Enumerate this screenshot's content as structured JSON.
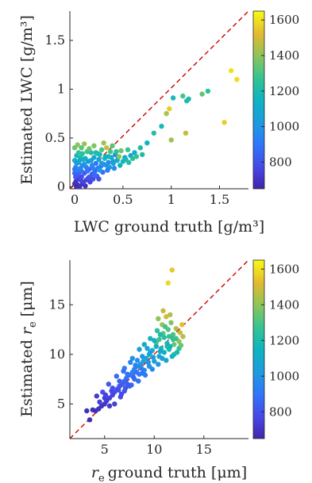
{
  "chart_data": [
    {
      "type": "scatter",
      "xlabel": "LWC ground truth [g/m³]",
      "ylabel": "Estimated LWC [g/m³]",
      "xlim": [
        -0.05,
        1.8
      ],
      "ylim": [
        -0.02,
        1.8
      ],
      "xticks": [
        "0",
        "0.5",
        "1",
        "1.5"
      ],
      "yticks": [
        "0",
        "0.5",
        "1",
        "1.5"
      ],
      "xtick_values": [
        0,
        0.5,
        1,
        1.5
      ],
      "ytick_values": [
        0,
        0.5,
        1,
        1.5
      ],
      "reference_line": "y = x (red dashed)",
      "colorbar": {
        "range": [
          650,
          1650
        ],
        "ticks": [
          "800",
          "1000",
          "1200",
          "1400",
          "1600"
        ],
        "tick_values": [
          800,
          1000,
          1200,
          1400,
          1600
        ],
        "colormap": "parula"
      },
      "points": [
        [
          1.62,
          1.19,
          1600
        ],
        [
          1.68,
          1.1,
          1590
        ],
        [
          1.55,
          0.66,
          1560
        ],
        [
          1.32,
          0.95,
          1330
        ],
        [
          1.38,
          0.98,
          1250
        ],
        [
          1.12,
          0.93,
          1300
        ],
        [
          1.18,
          0.9,
          1200
        ],
        [
          1.16,
          0.88,
          1210
        ],
        [
          1.02,
          0.91,
          1180
        ],
        [
          0.98,
          0.8,
          1560
        ],
        [
          0.95,
          0.75,
          1450
        ],
        [
          1.15,
          0.55,
          1480
        ],
        [
          1.0,
          0.48,
          1420
        ],
        [
          0.9,
          0.62,
          1180
        ],
        [
          0.82,
          0.55,
          1230
        ],
        [
          0.75,
          0.45,
          1150
        ],
        [
          0.68,
          0.4,
          1200
        ],
        [
          0.62,
          0.35,
          1120
        ],
        [
          0.58,
          0.32,
          1080
        ],
        [
          0.52,
          0.3,
          1050
        ],
        [
          0.48,
          0.37,
          1350
        ],
        [
          0.55,
          0.38,
          1280
        ],
        [
          0.45,
          0.3,
          1150
        ],
        [
          0.42,
          0.33,
          980
        ],
        [
          0.4,
          0.26,
          1020
        ],
        [
          0.38,
          0.3,
          1100
        ],
        [
          0.35,
          0.25,
          950
        ],
        [
          0.33,
          0.4,
          1480
        ],
        [
          0.3,
          0.45,
          1420
        ],
        [
          0.28,
          0.38,
          1300
        ],
        [
          0.26,
          0.33,
          1180
        ],
        [
          0.25,
          0.28,
          1050
        ],
        [
          0.22,
          0.24,
          900
        ],
        [
          0.2,
          0.3,
          1080
        ],
        [
          0.18,
          0.22,
          960
        ],
        [
          0.17,
          0.35,
          1220
        ],
        [
          0.15,
          0.18,
          850
        ],
        [
          0.14,
          0.26,
          1000
        ],
        [
          0.12,
          0.2,
          920
        ],
        [
          0.1,
          0.14,
          820
        ],
        [
          0.09,
          0.28,
          1150
        ],
        [
          0.08,
          0.22,
          980
        ],
        [
          0.07,
          0.16,
          880
        ],
        [
          0.06,
          0.3,
          1200
        ],
        [
          0.05,
          0.11,
          780
        ],
        [
          0.04,
          0.25,
          1050
        ],
        [
          0.03,
          0.18,
          920
        ],
        [
          0.02,
          0.08,
          720
        ],
        [
          0.02,
          0.32,
          1180
        ],
        [
          0.01,
          0.2,
          980
        ],
        [
          0.0,
          0.4,
          1350
        ],
        [
          0.0,
          0.27,
          1100
        ],
        [
          0.0,
          0.14,
          860
        ],
        [
          0.01,
          0.05,
          700
        ],
        [
          0.03,
          0.02,
          680
        ],
        [
          0.05,
          0.0,
          690
        ],
        [
          0.08,
          0.03,
          710
        ],
        [
          0.12,
          0.07,
          760
        ],
        [
          0.15,
          0.1,
          800
        ],
        [
          0.18,
          0.13,
          830
        ],
        [
          0.21,
          0.16,
          870
        ],
        [
          0.24,
          0.19,
          900
        ],
        [
          0.27,
          0.21,
          930
        ],
        [
          0.3,
          0.23,
          960
        ],
        [
          0.33,
          0.22,
          990
        ],
        [
          0.36,
          0.2,
          1020
        ],
        [
          0.4,
          0.24,
          1060
        ],
        [
          0.44,
          0.27,
          1100
        ],
        [
          0.47,
          0.22,
          1130
        ],
        [
          0.5,
          0.26,
          1160
        ],
        [
          0.53,
          0.28,
          1190
        ],
        [
          0.56,
          0.25,
          1220
        ],
        [
          0.6,
          0.29,
          1240
        ],
        [
          0.64,
          0.31,
          1260
        ],
        [
          0.7,
          0.33,
          1200
        ],
        [
          0.2,
          0.42,
          1380
        ],
        [
          0.13,
          0.36,
          1280
        ],
        [
          0.1,
          0.44,
          1420
        ],
        [
          0.07,
          0.4,
          1330
        ],
        [
          0.04,
          0.35,
          1260
        ],
        [
          0.16,
          0.05,
          750
        ],
        [
          0.11,
          0.01,
          700
        ],
        [
          0.19,
          0.08,
          780
        ],
        [
          0.23,
          0.11,
          820
        ],
        [
          0.29,
          0.15,
          880
        ],
        [
          0.34,
          0.17,
          920
        ],
        [
          0.41,
          0.19,
          970
        ],
        [
          0.46,
          0.31,
          1400
        ],
        [
          0.37,
          0.36,
          1300
        ],
        [
          0.31,
          0.29,
          1200
        ],
        [
          0.26,
          0.17,
          1000
        ],
        [
          0.21,
          0.12,
          870
        ],
        [
          0.14,
          0.09,
          800
        ],
        [
          0.09,
          0.05,
          740
        ],
        [
          0.06,
          0.07,
          760
        ],
        [
          0.0,
          0.18,
          900
        ],
        [
          0.02,
          0.24,
          1010
        ],
        [
          0.04,
          0.13,
          850
        ],
        [
          0.06,
          0.19,
          950
        ],
        [
          0.11,
          0.29,
          1130
        ],
        [
          0.13,
          0.16,
          890
        ],
        [
          0.17,
          0.27,
          1070
        ],
        [
          0.24,
          0.34,
          1190
        ],
        [
          0.32,
          0.31,
          1140
        ],
        [
          0.43,
          0.36,
          1250
        ],
        [
          0.39,
          0.42,
          1320
        ],
        [
          0.35,
          0.31,
          1160
        ],
        [
          0.28,
          0.24,
          1040
        ],
        [
          0.22,
          0.35,
          1210
        ],
        [
          0.19,
          0.19,
          940
        ],
        [
          0.15,
          0.39,
          1360
        ],
        [
          0.08,
          0.34,
          1240
        ],
        [
          0.05,
          0.27,
          1090
        ],
        [
          0.03,
          0.43,
          1400
        ],
        [
          0.01,
          0.1,
          810
        ],
        [
          0.0,
          0.03,
          690
        ],
        [
          0.02,
          0.0,
          680
        ],
        [
          0.07,
          0.1,
          780
        ],
        [
          0.1,
          0.23,
          990
        ],
        [
          0.25,
          0.08,
          790
        ]
      ]
    },
    {
      "type": "scatter",
      "xlabel": "ground truth [μm]",
      "xlabel_symbol": "r",
      "xlabel_subscript": "e",
      "ylabel": "Estimated",
      "ylabel_symbol": "r",
      "ylabel_subscript": "e",
      "ylabel_unit": "[μm]",
      "xlim": [
        1.5,
        19.5
      ],
      "ylim": [
        1.5,
        19.5
      ],
      "xticks": [
        "5",
        "10",
        "15"
      ],
      "yticks": [
        "5",
        "10",
        "15"
      ],
      "xtick_values": [
        5,
        10,
        15
      ],
      "ytick_values": [
        5,
        10,
        15
      ],
      "reference_line": "y = x (red dashed)",
      "colorbar": {
        "range": [
          650,
          1650
        ],
        "ticks": [
          "800",
          "1000",
          "1200",
          "1400",
          "1600"
        ],
        "tick_values": [
          800,
          1000,
          1200,
          1400,
          1600
        ],
        "colormap": "parula"
      },
      "points": [
        [
          11.8,
          18.5,
          1550
        ],
        [
          11.4,
          17.2,
          1580
        ],
        [
          11.6,
          14.0,
          1450
        ],
        [
          11.2,
          13.8,
          1500
        ],
        [
          10.8,
          13.0,
          1420
        ],
        [
          12.8,
          13.0,
          1530
        ],
        [
          12.2,
          12.6,
          1440
        ],
        [
          11.9,
          12.0,
          1300
        ],
        [
          11.5,
          11.8,
          1250
        ],
        [
          10.9,
          12.1,
          1320
        ],
        [
          10.5,
          11.5,
          1280
        ],
        [
          12.5,
          11.3,
          1400
        ],
        [
          12.0,
          11.0,
          1350
        ],
        [
          11.3,
          10.8,
          1220
        ],
        [
          10.7,
          10.6,
          1180
        ],
        [
          10.2,
          11.2,
          1300
        ],
        [
          9.8,
          10.4,
          1150
        ],
        [
          9.5,
          10.0,
          1100
        ],
        [
          9.2,
          9.6,
          1080
        ],
        [
          8.9,
          9.3,
          1050
        ],
        [
          8.6,
          9.0,
          1020
        ],
        [
          8.3,
          8.8,
          990
        ],
        [
          8.0,
          8.5,
          960
        ],
        [
          7.8,
          8.2,
          930
        ],
        [
          7.5,
          7.9,
          900
        ],
        [
          7.2,
          7.6,
          880
        ],
        [
          7.0,
          7.3,
          860
        ],
        [
          6.8,
          7.0,
          840
        ],
        [
          6.5,
          6.8,
          820
        ],
        [
          6.3,
          6.5,
          800
        ],
        [
          6.0,
          6.2,
          780
        ],
        [
          5.8,
          5.9,
          760
        ],
        [
          5.5,
          5.6,
          740
        ],
        [
          5.2,
          5.3,
          720
        ],
        [
          5.0,
          5.0,
          710
        ],
        [
          4.7,
          4.8,
          700
        ],
        [
          4.4,
          4.5,
          690
        ],
        [
          4.1,
          4.3,
          680
        ],
        [
          3.8,
          4.4,
          680
        ],
        [
          3.5,
          3.4,
          680
        ],
        [
          3.2,
          4.3,
          690
        ],
        [
          4.2,
          5.8,
          720
        ],
        [
          5.0,
          5.6,
          730
        ],
        [
          5.5,
          4.8,
          720
        ],
        [
          6.0,
          5.0,
          740
        ],
        [
          6.6,
          5.7,
          770
        ],
        [
          7.0,
          6.3,
          800
        ],
        [
          7.5,
          6.8,
          830
        ],
        [
          8.0,
          7.5,
          870
        ],
        [
          8.5,
          8.0,
          910
        ],
        [
          9.0,
          8.4,
          950
        ],
        [
          9.5,
          8.8,
          990
        ],
        [
          10.0,
          9.3,
          1040
        ],
        [
          10.5,
          9.8,
          1090
        ],
        [
          11.0,
          10.2,
          1140
        ],
        [
          11.5,
          10.5,
          1190
        ],
        [
          12.0,
          10.0,
          1210
        ],
        [
          12.5,
          10.6,
          1250
        ],
        [
          6.2,
          7.8,
          870
        ],
        [
          7.0,
          8.6,
          920
        ],
        [
          7.8,
          9.6,
          990
        ],
        [
          8.5,
          10.5,
          1050
        ],
        [
          9.0,
          11.0,
          1100
        ],
        [
          9.6,
          11.6,
          1160
        ],
        [
          10.3,
          12.4,
          1240
        ],
        [
          5.4,
          7.0,
          820
        ],
        [
          4.8,
          6.2,
          780
        ],
        [
          4.5,
          5.2,
          740
        ],
        [
          5.8,
          6.6,
          790
        ],
        [
          6.5,
          7.3,
          840
        ],
        [
          7.3,
          8.0,
          890
        ],
        [
          8.1,
          8.9,
          940
        ],
        [
          8.8,
          9.8,
          1000
        ],
        [
          9.3,
          10.6,
          1060
        ],
        [
          10.0,
          11.4,
          1130
        ],
        [
          10.6,
          12.0,
          1200
        ],
        [
          11.1,
          12.8,
          1300
        ],
        [
          7.7,
          6.9,
          850
        ],
        [
          8.4,
          7.3,
          880
        ],
        [
          9.1,
          7.9,
          920
        ],
        [
          9.8,
          8.5,
          960
        ],
        [
          10.4,
          9.0,
          1010
        ],
        [
          11.2,
          9.4,
          1070
        ],
        [
          11.8,
          9.8,
          1130
        ],
        [
          12.3,
          10.2,
          1190
        ],
        [
          12.9,
          11.8,
          1450
        ],
        [
          12.6,
          12.2,
          1480
        ],
        [
          11.7,
          13.2,
          1380
        ],
        [
          10.9,
          14.4,
          1480
        ],
        [
          10.4,
          13.6,
          1400
        ],
        [
          6.7,
          6.0,
          780
        ],
        [
          7.3,
          7.0,
          830
        ],
        [
          8.2,
          8.2,
          900
        ],
        [
          8.7,
          8.6,
          930
        ],
        [
          9.4,
          9.2,
          980
        ],
        [
          9.9,
          9.7,
          1020
        ],
        [
          10.6,
          10.3,
          1080
        ],
        [
          11.3,
          11.1,
          1170
        ],
        [
          11.9,
          11.5,
          1260
        ],
        [
          6.9,
          8.3,
          880
        ],
        [
          7.6,
          9.2,
          950
        ],
        [
          8.3,
          9.4,
          970
        ],
        [
          9.6,
          10.2,
          1040
        ],
        [
          10.2,
          10.8,
          1100
        ],
        [
          11.0,
          11.7,
          1230
        ],
        [
          5.1,
          5.9,
          750
        ],
        [
          5.7,
          6.3,
          770
        ],
        [
          6.4,
          6.4,
          790
        ],
        [
          7.1,
          6.6,
          810
        ],
        [
          7.9,
          7.7,
          860
        ],
        [
          8.8,
          8.1,
          900
        ],
        [
          10.8,
          9.6,
          1060
        ],
        [
          11.6,
          10.8,
          1160
        ],
        [
          12.2,
          11.6,
          1280
        ],
        [
          12.7,
          10.9,
          1350
        ],
        [
          11.4,
          12.5,
          1310
        ]
      ]
    }
  ]
}
